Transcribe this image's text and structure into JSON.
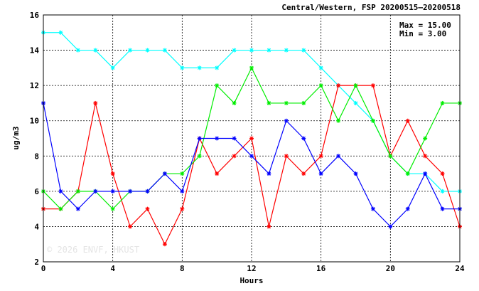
{
  "chart_data": {
    "type": "line",
    "title": "Central/Western, FSP 20200515–20200518",
    "xlabel": "Hours",
    "ylabel": "ug/m3",
    "xlim": [
      0,
      24
    ],
    "ylim": [
      2,
      16
    ],
    "xticks": [
      0,
      4,
      8,
      12,
      16,
      20,
      24
    ],
    "yticks": [
      2,
      4,
      6,
      8,
      10,
      12,
      14,
      16
    ],
    "grid": true,
    "stats": {
      "max": "Max = 15.00",
      "min": "Min =  3.00"
    },
    "watermark": "© 2026 ENVF, HKUST",
    "x": [
      0,
      1,
      2,
      3,
      4,
      5,
      6,
      7,
      8,
      9,
      10,
      11,
      12,
      13,
      14,
      15,
      16,
      17,
      18,
      19,
      20,
      21,
      22,
      23,
      24
    ],
    "series": [
      {
        "color": "#00ffff",
        "values": [
          15,
          15,
          14,
          14,
          13,
          14,
          14,
          14,
          13,
          13,
          13,
          14,
          14,
          14,
          14,
          14,
          13,
          12,
          11,
          10,
          8,
          7,
          7,
          6,
          6
        ]
      },
      {
        "color": "#ff0000",
        "values": [
          5,
          5,
          6,
          11,
          7,
          4,
          5,
          3,
          5,
          9,
          7,
          8,
          9,
          4,
          8,
          7,
          8,
          12,
          12,
          12,
          8,
          10,
          8,
          7,
          4
        ]
      },
      {
        "color": "#00ee00",
        "values": [
          6,
          5,
          6,
          6,
          5,
          6,
          6,
          7,
          7,
          8,
          12,
          11,
          13,
          11,
          11,
          11,
          12,
          10,
          12,
          10,
          8,
          7,
          9,
          11,
          11
        ]
      },
      {
        "color": "#0000ff",
        "values": [
          11,
          6,
          5,
          6,
          6,
          6,
          6,
          7,
          6,
          9,
          9,
          9,
          8,
          7,
          10,
          9,
          7,
          8,
          7,
          5,
          4,
          5,
          7,
          5,
          5
        ]
      }
    ]
  }
}
